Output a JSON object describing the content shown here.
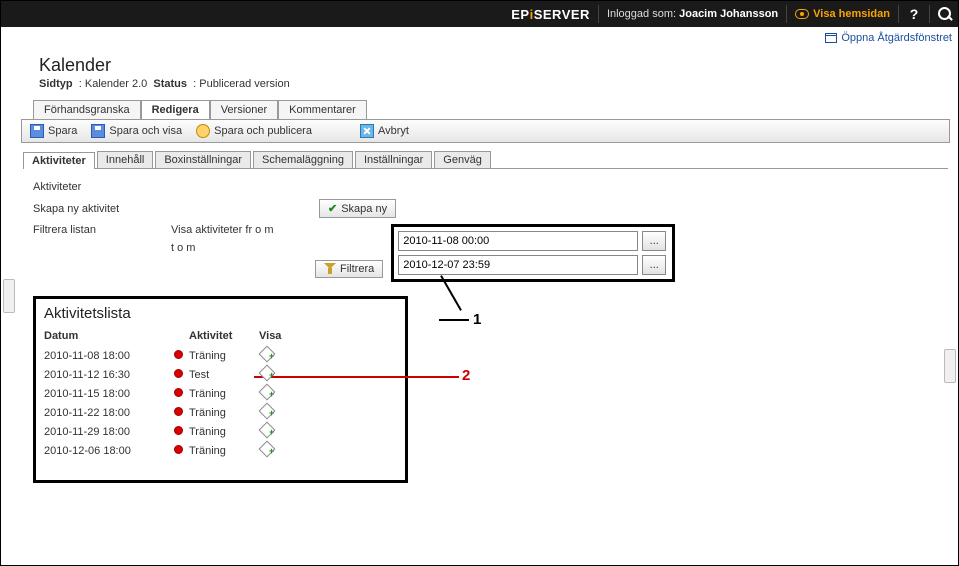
{
  "topbar": {
    "brand_prefix": "EP",
    "brand_i": "i",
    "brand_suffix": "SERVER",
    "logged_in_label": "Inloggad som:",
    "logged_in_user": "Joacim Johansson",
    "view_site": "Visa hemsidan",
    "help": "?",
    "search_alt": "Sök"
  },
  "secondbar": {
    "open_panel": "Öppna Åtgärdsfönstret"
  },
  "page": {
    "title": "Kalender",
    "subtype_label": "Sidtyp",
    "subtype_value": "Kalender 2.0",
    "status_label": "Status",
    "status_value": "Publicerad version"
  },
  "top_tabs": {
    "preview": "Förhandsgranska",
    "edit": "Redigera",
    "versions": "Versioner",
    "comments": "Kommentarer"
  },
  "toolbar": {
    "save": "Spara",
    "save_view": "Spara och visa",
    "save_publish": "Spara och publicera",
    "cancel": "Avbryt"
  },
  "sub_tabs": {
    "activities": "Aktiviteter",
    "content": "Innehåll",
    "box": "Boxinställningar",
    "schedule": "Schemaläggning",
    "settings": "Inställningar",
    "shortcut": "Genväg"
  },
  "activities_pane": {
    "section_title": "Aktiviteter",
    "create_label": "Skapa ny aktivitet",
    "create_btn": "Skapa ny",
    "filter_label": "Filtrera listan",
    "from_label": "Visa aktiviteter fr o m",
    "to_label": "t o m",
    "from_value": "2010-11-08 00:00",
    "to_value": "2010-12-07 23:59",
    "filter_btn": "Filtrera",
    "picker_btn": "..."
  },
  "annotations": {
    "n1": "1",
    "n2": "2"
  },
  "activity_list": {
    "title": "Aktivitetslista",
    "col_date": "Datum",
    "col_activity": "Aktivitet",
    "col_show": "Visa",
    "dot_color": "#d00",
    "rows": [
      {
        "date": "2010-11-08 18:00",
        "activity": "Träning"
      },
      {
        "date": "2010-11-12 16:30",
        "activity": "Test"
      },
      {
        "date": "2010-11-15 18:00",
        "activity": "Träning"
      },
      {
        "date": "2010-11-22 18:00",
        "activity": "Träning"
      },
      {
        "date": "2010-11-29 18:00",
        "activity": "Träning"
      },
      {
        "date": "2010-12-06 18:00",
        "activity": "Träning"
      }
    ]
  }
}
